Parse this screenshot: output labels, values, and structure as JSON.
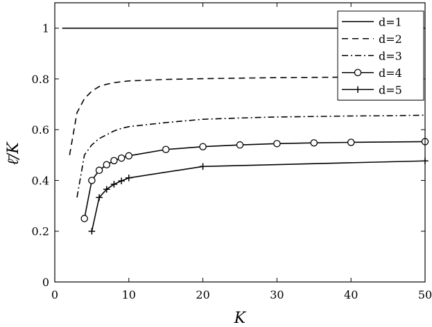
{
  "chart_data": {
    "type": "line",
    "xlabel": "K",
    "ylabel": "ℓ̄/K",
    "xlim": [
      0,
      50
    ],
    "ylim": [
      0,
      1.1
    ],
    "xticks": [
      0,
      10,
      20,
      30,
      40,
      50
    ],
    "yticks": [
      0,
      0.2,
      0.4,
      0.6,
      0.8,
      1
    ],
    "xtick_labels": [
      "0",
      "10",
      "20",
      "30",
      "40",
      "50"
    ],
    "ytick_labels": [
      "0",
      "0.2",
      "0.4",
      "0.6",
      "0.8",
      "1"
    ],
    "grid": false,
    "legend_position": "top-right",
    "series": [
      {
        "name": "d=1",
        "style": "solid",
        "marker": "none",
        "x": [
          1,
          50
        ],
        "y": [
          1.0,
          1.0
        ]
      },
      {
        "name": "d=2",
        "style": "dashed",
        "marker": "none",
        "x": [
          2,
          3,
          4,
          5,
          6,
          7,
          8,
          9,
          10,
          15,
          20,
          25,
          30,
          35,
          40,
          45,
          50
        ],
        "y": [
          0.5,
          0.667,
          0.722,
          0.752,
          0.77,
          0.779,
          0.785,
          0.789,
          0.792,
          0.798,
          0.801,
          0.803,
          0.805,
          0.806,
          0.807,
          0.808,
          0.809
        ]
      },
      {
        "name": "d=3",
        "style": "dashdot",
        "marker": "none",
        "x": [
          3,
          4,
          5,
          6,
          7,
          8,
          9,
          10,
          15,
          20,
          25,
          30,
          35,
          40,
          45,
          50
        ],
        "y": [
          0.333,
          0.5,
          0.54,
          0.565,
          0.58,
          0.595,
          0.605,
          0.612,
          0.628,
          0.641,
          0.646,
          0.65,
          0.652,
          0.654,
          0.655,
          0.657
        ]
      },
      {
        "name": "d=4",
        "style": "solid",
        "marker": "circle",
        "x": [
          4,
          5,
          6,
          7,
          8,
          9,
          10,
          15,
          20,
          25,
          30,
          35,
          40,
          50
        ],
        "y": [
          0.25,
          0.4,
          0.44,
          0.462,
          0.478,
          0.488,
          0.497,
          0.522,
          0.533,
          0.54,
          0.545,
          0.548,
          0.55,
          0.553
        ]
      },
      {
        "name": "d=5",
        "style": "solid",
        "marker": "plus",
        "x": [
          5,
          6,
          7,
          8,
          9,
          10,
          20,
          50
        ],
        "y": [
          0.2,
          0.333,
          0.365,
          0.385,
          0.398,
          0.41,
          0.455,
          0.477
        ]
      }
    ]
  }
}
